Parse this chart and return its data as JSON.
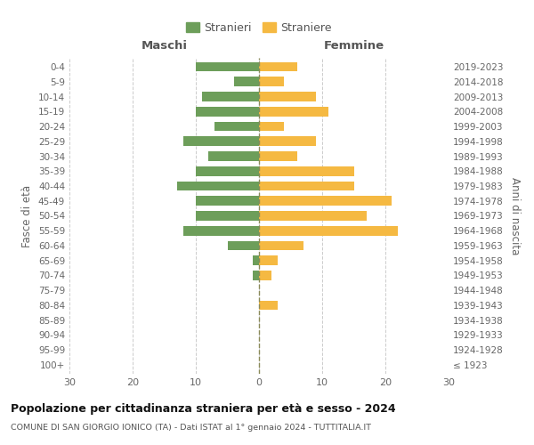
{
  "age_groups": [
    "100+",
    "95-99",
    "90-94",
    "85-89",
    "80-84",
    "75-79",
    "70-74",
    "65-69",
    "60-64",
    "55-59",
    "50-54",
    "45-49",
    "40-44",
    "35-39",
    "30-34",
    "25-29",
    "20-24",
    "15-19",
    "10-14",
    "5-9",
    "0-4"
  ],
  "birth_years": [
    "≤ 1923",
    "1924-1928",
    "1929-1933",
    "1934-1938",
    "1939-1943",
    "1944-1948",
    "1949-1953",
    "1954-1958",
    "1959-1963",
    "1964-1968",
    "1969-1973",
    "1974-1978",
    "1979-1983",
    "1984-1988",
    "1989-1993",
    "1994-1998",
    "1999-2003",
    "2004-2008",
    "2009-2013",
    "2014-2018",
    "2019-2023"
  ],
  "males": [
    0,
    0,
    0,
    0,
    0,
    0,
    1,
    1,
    5,
    12,
    10,
    10,
    13,
    10,
    8,
    12,
    7,
    10,
    9,
    4,
    10
  ],
  "females": [
    0,
    0,
    0,
    0,
    3,
    0,
    2,
    3,
    7,
    22,
    17,
    21,
    15,
    15,
    6,
    9,
    4,
    11,
    9,
    4,
    6
  ],
  "male_color": "#6d9e5a",
  "female_color": "#f5b942",
  "grid_color": "#cccccc",
  "dashed_line_color": "#8b8b5a",
  "title": "Popolazione per cittadinanza straniera per età e sesso - 2024",
  "subtitle": "COMUNE DI SAN GIORGIO IONICO (TA) - Dati ISTAT al 1° gennaio 2024 - TUTTITALIA.IT",
  "ylabel_left": "Fasce di età",
  "ylabel_right": "Anni di nascita",
  "xlabel_left": "Maschi",
  "xlabel_right": "Femmine",
  "legend_stranieri": "Stranieri",
  "legend_straniere": "Straniere",
  "xlim": 30,
  "background_color": "#ffffff"
}
